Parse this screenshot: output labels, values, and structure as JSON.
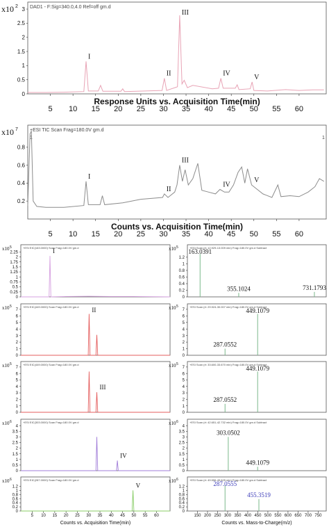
{
  "chart_data": [
    {
      "type": "line",
      "header": "DAD1 - F:Sig=340.0,4.0  Ref=off gm.d",
      "ymult": "x10",
      "yexp": "2",
      "xlabel": "Response Units vs. Acquisition Time(min)",
      "xlim": [
        0,
        66
      ],
      "ylim": [
        0,
        3.1
      ],
      "xticks": [
        "5",
        "10",
        "15",
        "20",
        "25",
        "30",
        "35",
        "40",
        "45",
        "50",
        "55",
        "60"
      ],
      "yticks": [
        "0",
        "0.5",
        "1",
        "1.5",
        "2",
        "2.5",
        "3"
      ],
      "color": "#e8a3b5",
      "x": [
        0,
        4,
        8,
        12.4,
        12.9,
        13.4,
        15.6,
        16.1,
        16.6,
        20.6,
        21,
        21.4,
        29.7,
        30.2,
        30.7,
        33.1,
        33.6,
        34.1,
        34.6,
        35.3,
        36.5,
        40.8,
        42.2,
        42.7,
        43.2,
        45.9,
        46.3,
        46.7,
        49.2,
        49.6,
        50,
        53,
        57,
        60,
        63,
        65.5
      ],
      "y": [
        0.05,
        0.05,
        0.06,
        0.08,
        1.15,
        0.1,
        0.1,
        0.3,
        0.09,
        0.09,
        0.18,
        0.08,
        0.12,
        0.55,
        0.12,
        0.25,
        2.78,
        0.35,
        0.48,
        0.22,
        0.3,
        0.18,
        0.2,
        0.55,
        0.2,
        0.2,
        0.32,
        0.15,
        0.18,
        0.42,
        0.12,
        0.1,
        0.15,
        0.12,
        0.14,
        0.14
      ],
      "peaks": [
        {
          "label": "I",
          "x": 12.9
        },
        {
          "label": "II",
          "x": 30.2
        },
        {
          "label": "III",
          "x": 33.6
        },
        {
          "label": "IV",
          "x": 42.7
        },
        {
          "label": "V",
          "x": 49.6
        }
      ]
    },
    {
      "type": "line",
      "header": "+ESI TIC Scan Frag=180.0V gm.d",
      "ymult": "x10",
      "yexp": "7",
      "xlabel": "Counts vs. Acquisition Time(min)",
      "xlim": [
        0,
        66
      ],
      "ylim": [
        0,
        1.0
      ],
      "xticks": [
        "5",
        "10",
        "15",
        "20",
        "25",
        "30",
        "35",
        "40",
        "45",
        "50",
        "55",
        "60"
      ],
      "yticks": [
        "0.2",
        "0.4",
        "0.6",
        "0.8"
      ],
      "corner_left": "1",
      "corner_right": "1",
      "color": "#8c8c8c",
      "x": [
        0,
        0.5,
        0.8,
        1.2,
        2,
        4,
        8,
        12.4,
        12.9,
        13.4,
        16,
        16.5,
        17,
        21,
        25,
        29.8,
        30.2,
        31,
        32.5,
        33,
        33.6,
        34.2,
        34.8,
        35.5,
        36.5,
        37.6,
        38.5,
        40,
        41.5,
        42.5,
        43.5,
        44.5,
        45.5,
        46.5,
        47.3,
        48,
        48.6,
        49.5,
        50.5,
        52,
        54,
        55.3,
        56,
        58,
        60,
        62,
        63.5,
        64.5,
        65.5
      ],
      "y": [
        0.15,
        0.95,
        0.98,
        0.2,
        0.14,
        0.13,
        0.13,
        0.15,
        0.42,
        0.16,
        0.16,
        0.26,
        0.16,
        0.18,
        0.22,
        0.24,
        0.28,
        0.24,
        0.3,
        0.38,
        0.6,
        0.42,
        0.55,
        0.38,
        0.45,
        0.62,
        0.32,
        0.3,
        0.28,
        0.33,
        0.3,
        0.3,
        0.38,
        0.52,
        0.58,
        0.4,
        0.56,
        0.38,
        0.34,
        0.28,
        0.24,
        0.38,
        0.25,
        0.26,
        0.25,
        0.3,
        0.36,
        0.45,
        0.42
      ],
      "peaks": [
        {
          "label": "I",
          "x": 12.9
        },
        {
          "label": "II",
          "x": 30.2
        },
        {
          "label": "III",
          "x": 33.6
        },
        {
          "label": "IV",
          "x": 42.7
        },
        {
          "label": "V",
          "x": 49.6
        }
      ]
    },
    {
      "type": "line",
      "header": "+ESI EIC(163.0000) Scan Frag=180.0V gm.d",
      "ymult": "x10",
      "yexp": "5",
      "xlim": [
        0,
        66
      ],
      "ylim": [
        0,
        2.4
      ],
      "yticks": [
        "0",
        "0.25",
        "0.5",
        "0.75",
        "1",
        "1.25",
        "1.5",
        "1.75",
        "2",
        "2.25"
      ],
      "color": "#d6a0e0",
      "x": [
        0,
        12.5,
        12.9,
        13.3,
        20,
        30,
        40,
        50,
        66
      ],
      "y": [
        0,
        0,
        2.05,
        0,
        0.02,
        0.03,
        0.02,
        0.02,
        0
      ],
      "peaks": [
        {
          "label": "I",
          "x": 12.9
        }
      ]
    },
    {
      "type": "line",
      "header": "+ESI EIC(449.0000) Scan Frag=180.0V gm.d",
      "ymult": "x10",
      "yexp": "5",
      "xlim": [
        0,
        66
      ],
      "ylim": [
        0,
        7.2
      ],
      "yticks": [
        "0",
        "1",
        "2",
        "3",
        "4",
        "5",
        "6",
        "7"
      ],
      "color": "#e45c5c",
      "x": [
        0,
        29.8,
        30.2,
        30.6,
        33.2,
        33.6,
        34,
        66
      ],
      "y": [
        0,
        0,
        6.3,
        0,
        0,
        3.1,
        0,
        0
      ],
      "peaks": [
        {
          "label": "II",
          "x": 30.2
        }
      ]
    },
    {
      "type": "line",
      "header": "+ESI EIC(449.0000) Scan Frag=180.0V gm.d",
      "ymult": "x10",
      "yexp": "5",
      "xlim": [
        0,
        66
      ],
      "ylim": [
        0,
        7.2
      ],
      "yticks": [
        "0",
        "1",
        "2",
        "3",
        "4",
        "5",
        "6",
        "7"
      ],
      "color": "#e45c5c",
      "x": [
        0,
        29.8,
        30.2,
        30.6,
        33.2,
        33.6,
        34,
        66
      ],
      "y": [
        0,
        0,
        6.3,
        0,
        0,
        3.1,
        0,
        0
      ],
      "peaks": [
        {
          "label": "III",
          "x": 33.6
        }
      ]
    },
    {
      "type": "line",
      "header": "+ESI EIC(303.0000) Scan Frag=180.0V gm.d",
      "ymult": "x10",
      "yexp": "6",
      "xlim": [
        0,
        66
      ],
      "ylim": [
        0,
        4.2
      ],
      "yticks": [
        "0",
        "0.5",
        "1",
        "1.5",
        "2",
        "2.5",
        "3",
        "3.5",
        "4"
      ],
      "color": "#a07cd8",
      "x": [
        0,
        33.2,
        33.6,
        34,
        42.3,
        42.7,
        43.1,
        66
      ],
      "y": [
        0,
        0,
        3.0,
        0,
        0,
        0.9,
        0,
        0
      ],
      "peaks": [
        {
          "label": "IV",
          "x": 42.7
        }
      ]
    },
    {
      "type": "line",
      "header": "+ESI EIC(287.0000) Scan Frag=180.0V gm.d",
      "ymult": "x10",
      "yexp": "6",
      "xlabel": "Counts vs. Acquisition Time(min)",
      "xlim": [
        0,
        66
      ],
      "ylim": [
        0,
        1.45
      ],
      "xticks": [
        "5",
        "10",
        "15",
        "20",
        "25",
        "30",
        "35",
        "40",
        "45",
        "50",
        "55",
        "60"
      ],
      "yticks": [
        "0",
        "0.2",
        "0.4",
        "0.6",
        "0.8",
        "1",
        "1.2"
      ],
      "color": "#88cc66",
      "x": [
        0,
        49.2,
        49.6,
        50,
        66
      ],
      "y": [
        0,
        0,
        1.0,
        0,
        0
      ],
      "peaks": [
        {
          "label": "V",
          "x": 49.6
        }
      ]
    },
    {
      "type": "bar",
      "header": "+ESI Scan (rt: 12.929-13.009 min) Frag=180.0V gm.d Subtract",
      "ymult": "x10",
      "yexp": "5",
      "xlim": [
        100,
        790
      ],
      "ylim": [
        0,
        1.45
      ],
      "yticks": [
        "0",
        "0.2",
        "0.4",
        "0.6",
        "0.8",
        "1",
        "1.2"
      ],
      "color": "#7ab88a",
      "x": [
        163.0391,
        355.1024,
        731.1793
      ],
      "y": [
        1.3,
        0.12,
        0.15
      ],
      "peak_labels": [
        {
          "text": "163.0391",
          "x": 163.0391,
          "y": 1.3
        },
        {
          "text": "355.1024",
          "x": 355.1024,
          "y": 0.12
        },
        {
          "text": "731.1793",
          "x": 731.1793,
          "y": 0.15
        }
      ]
    },
    {
      "type": "bar",
      "header": "+ESI Scan (rt: 29.924-30.007 min) Frag=180.0V gm.d Subtract",
      "ymult": "x10",
      "yexp": "5",
      "xlim": [
        100,
        790
      ],
      "ylim": [
        0,
        7.2
      ],
      "yticks": [
        "0",
        "1",
        "2",
        "3",
        "4",
        "5",
        "6",
        "7"
      ],
      "color": "#7ab88a",
      "x": [
        287.0552,
        449.1079
      ],
      "y": [
        1.0,
        6.3
      ],
      "peak_labels": [
        {
          "text": "449.1079",
          "x": 449.1079,
          "y": 6.3
        },
        {
          "text": "287.0552",
          "x": 287.0552,
          "y": 1.0
        }
      ]
    },
    {
      "type": "bar",
      "header": "+ESI Scan (rt: 33.600-33.670 min) Frag=180.0V gm.d Subtract",
      "ymult": "x10",
      "yexp": "5",
      "xlim": [
        100,
        790
      ],
      "ylim": [
        0,
        7.2
      ],
      "yticks": [
        "0",
        "1",
        "2",
        "3",
        "4",
        "5",
        "6",
        "7"
      ],
      "color": "#7ab88a",
      "x": [
        287.0552,
        449.1079
      ],
      "y": [
        1.3,
        6.3
      ],
      "peak_labels": [
        {
          "text": "449.1079",
          "x": 449.1079,
          "y": 6.3
        },
        {
          "text": "287.0552",
          "x": 287.0552,
          "y": 1.3
        }
      ]
    },
    {
      "type": "bar",
      "header": "+ESI Scan (rt: 42.651-42.732 min) Frag=180.0V gm.d Subtract",
      "ymult": "x10",
      "yexp": "6",
      "xlim": [
        100,
        790
      ],
      "ylim": [
        0,
        4.2
      ],
      "yticks": [
        "0",
        "0.5",
        "1",
        "1.5",
        "2",
        "2.5",
        "3",
        "3.5",
        "4"
      ],
      "color": "#7ab88a",
      "x": [
        303.0502,
        449.1079
      ],
      "y": [
        3.0,
        0.35
      ],
      "peak_labels": [
        {
          "text": "303.0502",
          "x": 303.0502,
          "y": 3.0
        },
        {
          "text": "449.1079",
          "x": 449.1079,
          "y": 0.35
        }
      ]
    },
    {
      "type": "bar",
      "header": "+ESI Scan (rt: 49.556-49.625 min) Frag=180.0V gm.d Subtract",
      "ymult": "x10",
      "yexp": "6",
      "xlabel": "Counts vs. Mass-to-Charge(m/z)",
      "xlim": [
        100,
        790
      ],
      "ylim": [
        0,
        1.45
      ],
      "xticks": [
        "150",
        "200",
        "250",
        "300",
        "350",
        "400",
        "450",
        "500",
        "550",
        "600",
        "650",
        "700",
        "750"
      ],
      "yticks": [
        "0",
        "0.2",
        "0.4",
        "0.6",
        "0.8",
        "1",
        "1.2"
      ],
      "color": "#7ab88a",
      "label_color": "#3a3ab8",
      "x": [
        287.0555,
        455.3519
      ],
      "y": [
        1.25,
        0.58
      ],
      "peak_labels": [
        {
          "text": "287.0555",
          "x": 287.0555,
          "y": 1.25
        },
        {
          "text": "455.3519",
          "x": 455.3519,
          "y": 0.58
        }
      ]
    }
  ]
}
